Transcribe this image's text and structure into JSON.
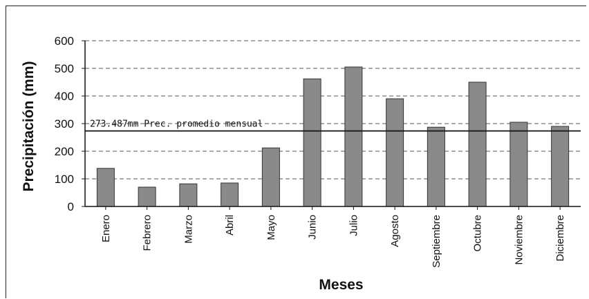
{
  "chart_data": {
    "type": "bar",
    "title": "",
    "xlabel": "Meses",
    "ylabel": "Precipitación (mm)",
    "ylim": [
      0,
      600
    ],
    "yticks": [
      0,
      100,
      200,
      300,
      400,
      500,
      600
    ],
    "grid": true,
    "categories": [
      "Enero",
      "Febrero",
      "Marzo",
      "Abril",
      "Mayo",
      "Junio",
      "Julio",
      "Agosto",
      "Septiembre",
      "Octubre",
      "Noviembre",
      "Diciembre"
    ],
    "values": [
      138,
      70,
      82,
      85,
      212,
      462,
      505,
      390,
      287,
      450,
      305,
      290
    ],
    "reference_line": {
      "value": 273.487,
      "label": "273.487mm Prec. promedio mensual"
    },
    "colors": {
      "bar": "#8a8a8a",
      "bar_edge": "#333333",
      "grid": "#555555",
      "reference_line": "#111111"
    }
  }
}
